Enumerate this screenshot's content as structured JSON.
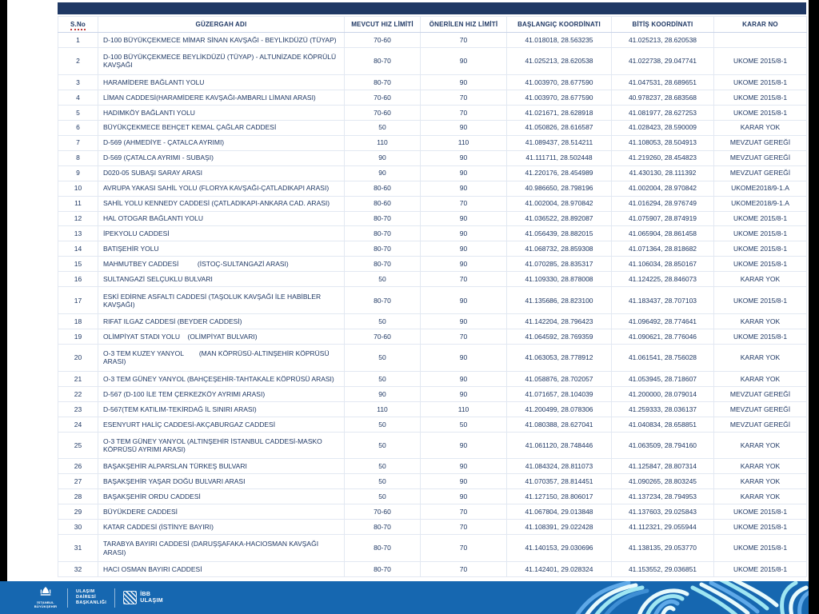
{
  "table": {
    "columns": [
      "S.No",
      "GÜZERGAH ADI",
      "MEVCUT HIZ LİMİTİ",
      "ÖNERİLEN HIZ LİMİTİ",
      "BAŞLANGIÇ KOORDİNATI",
      "BİTİŞ KOORDİNATI",
      "KARAR NO"
    ],
    "rows": [
      {
        "no": "1",
        "route": "D-100 BÜYÜKÇEKMECE MİMAR SİNAN KAVŞAĞI - BEYLİKDÜZÜ (TÜYAP)",
        "current": "70-60",
        "proposed": "70",
        "start": "41.018018, 28.563235",
        "end": "41.025213, 28.620538",
        "decision": ""
      },
      {
        "no": "2",
        "route": "D-100 BÜYÜKÇEKMECE BEYLİKDÜZÜ (TÜYAP) - ALTUNİZADE KÖPRÜLÜ KAVŞAĞI",
        "current": "80-70",
        "proposed": "90",
        "start": "41.025213, 28.620538",
        "end": "41.022738, 29.047741",
        "decision": "UKOME 2015/8-1"
      },
      {
        "no": "3",
        "route": "HARAMİDERE BAĞLANTI YOLU",
        "current": "80-70",
        "proposed": "90",
        "start": "41.003970, 28.677590",
        "end": "41.047531, 28.689651",
        "decision": "UKOME 2015/8-1"
      },
      {
        "no": "4",
        "route": "LİMAN CADDESİ(HARAMİDERE KAVŞAĞI-AMBARLI LİMANI ARASI)",
        "current": "70-60",
        "proposed": "70",
        "start": "41.003970, 28.677590",
        "end": "40.978237, 28.683568",
        "decision": "UKOME 2015/8-1"
      },
      {
        "no": "5",
        "route": "HADIMKÖY BAĞLANTI YOLU",
        "current": "70-60",
        "proposed": "70",
        "start": "41.021671, 28.628918",
        "end": "41.081977, 28.627253",
        "decision": "UKOME 2015/8-1"
      },
      {
        "no": "6",
        "route": "BÜYÜKÇEKMECE BEHÇET KEMAL ÇAĞLAR CADDESİ",
        "current": "50",
        "proposed": "90",
        "start": "41.050826, 28.616587",
        "end": "41.028423, 28.590009",
        "decision": "KARAR YOK"
      },
      {
        "no": "7",
        "route": "D-569 (AHMEDİYE - ÇATALCA AYRIMI)",
        "current": "110",
        "proposed": "110",
        "start": "41.089437, 28.514211",
        "end": "41.108053, 28.504913",
        "decision": "MEVZUAT GEREĞİ"
      },
      {
        "no": "8",
        "route": "D-569 (ÇATALCA AYRIMI - SUBAŞI)",
        "current": "90",
        "proposed": "90",
        "start": "41.111711, 28.502448",
        "end": "41.219260, 28.454823",
        "decision": "MEVZUAT GEREĞİ"
      },
      {
        "no": "9",
        "route": "D020-05 SUBAŞI SARAY ARASI",
        "current": "90",
        "proposed": "90",
        "start": "41.220176, 28.454989",
        "end": "41.430130, 28.111392",
        "decision": "MEVZUAT GEREĞİ"
      },
      {
        "no": "10",
        "route": "AVRUPA YAKASI SAHİL YOLU (FLORYA KAVŞAĞI-ÇATLADIKAPI ARASI)",
        "current": "80-60",
        "proposed": "90",
        "start": "40.986650, 28.798196",
        "end": "41.002004, 28.970842",
        "decision": "UKOME2018/9-1.A"
      },
      {
        "no": "11",
        "route": "SAHİL YOLU KENNEDY CADDESİ (ÇATLADIKAPI-ANKARA CAD. ARASI)",
        "current": "80-60",
        "proposed": "70",
        "start": "41.002004, 28.970842",
        "end": "41.016294, 28.976749",
        "decision": "UKOME2018/9-1.A"
      },
      {
        "no": "12",
        "route": "HAL OTOGAR BAĞLANTI YOLU",
        "current": "80-70",
        "proposed": "90",
        "start": "41.036522, 28.892087",
        "end": "41.075907, 28.874919",
        "decision": "UKOME 2015/8-1"
      },
      {
        "no": "13",
        "route": "İPEKYOLU CADDESİ",
        "current": "80-70",
        "proposed": "90",
        "start": "41.056439, 28.882015",
        "end": "41.065904, 28.861458",
        "decision": "UKOME 2015/8-1"
      },
      {
        "no": "14",
        "route": "BATIŞEHİR YOLU",
        "current": "80-70",
        "proposed": "90",
        "start": "41.068732, 28.859308",
        "end": "41.071364, 28.818682",
        "decision": "UKOME 2015/8-1"
      },
      {
        "no": "15",
        "route": "MAHMUTBEY CADDESİ          (İSTOÇ-SULTANGAZİ ARASI)",
        "current": "80-70",
        "proposed": "90",
        "start": "41.070285, 28.835317",
        "end": "41.106034, 28.850167",
        "decision": "UKOME 2015/8-1"
      },
      {
        "no": "16",
        "route": "SULTANGAZİ SELÇUKLU BULVARI",
        "current": "50",
        "proposed": "70",
        "start": "41.109330, 28.878008",
        "end": "41.124225, 28.846073",
        "decision": "KARAR YOK"
      },
      {
        "no": "17",
        "route": "ESKİ EDİRNE ASFALTI CADDESİ (TAŞOLUK KAVŞAĞI İLE HABİBLER KAVŞAĞI)",
        "current": "80-70",
        "proposed": "90",
        "start": "41.135686, 28.823100",
        "end": "41.183437, 28.707103",
        "decision": "UKOME 2015/8-1"
      },
      {
        "no": "18",
        "route": "RIFAT ILGAZ CADDESİ (BEYDER CADDESİ)",
        "current": "50",
        "proposed": "90",
        "start": "41.142204, 28.796423",
        "end": "41.096492, 28.774641",
        "decision": "KARAR YOK"
      },
      {
        "no": "19",
        "route": "OLİMPİYAT STADI YOLU    (OLİMPİYAT BULVARI)",
        "current": "70-60",
        "proposed": "70",
        "start": "41.064592, 28.769359",
        "end": "41.090621, 28.776046",
        "decision": "UKOME 2015/8-1"
      },
      {
        "no": "20",
        "route": "O-3 TEM KUZEY YANYOL        (MAN KÖPRÜSÜ-ALTINŞEHİR KÖPRÜSÜ ARASI)",
        "current": "50",
        "proposed": "90",
        "start": "41.063053, 28.778912",
        "end": "41.061541, 28.756028",
        "decision": "KARAR YOK"
      },
      {
        "no": "21",
        "route": "O-3 TEM GÜNEY YANYOL (BAHÇEŞEHİR-TAHTAKALE KÖPRÜSÜ ARASI)",
        "current": "50",
        "proposed": "90",
        "start": "41.058876, 28.702057",
        "end": "41.053945, 28.718607",
        "decision": "KARAR YOK"
      },
      {
        "no": "22",
        "route": "D-567 (D-100 İLE TEM ÇERKEZKÖY AYRIMI ARASI)",
        "current": "90",
        "proposed": "90",
        "start": "41.071657, 28.104039",
        "end": "41.200000, 28.079014",
        "decision": "MEVZUAT GEREĞİ"
      },
      {
        "no": "23",
        "route": "D-567(TEM KATILIM-TEKİRDAĞ İL SINIRI ARASI)",
        "current": "110",
        "proposed": "110",
        "start": "41.200499, 28.078306",
        "end": "41.259333, 28.036137",
        "decision": "MEVZUAT GEREĞİ"
      },
      {
        "no": "24",
        "route": "ESENYURT HALİÇ CADDESİ-AKÇABURGAZ CADDESİ",
        "current": "50",
        "proposed": "50",
        "start": "41.080388, 28.627041",
        "end": "41.040834, 28.658851",
        "decision": "MEVZUAT GEREĞİ"
      },
      {
        "no": "25",
        "route": "O-3 TEM GÜNEY YANYOL (ALTINŞEHİR İSTANBUL CADDESİ-MASKO KÖPRÜSÜ AYRIMI ARASI)",
        "current": "50",
        "proposed": "90",
        "start": "41.061120, 28.748446",
        "end": "41.063509, 28.794160",
        "decision": "KARAR YOK"
      },
      {
        "no": "26",
        "route": "BAŞAKŞEHİR ALPARSLAN TÜRKEŞ BULVARI",
        "current": "50",
        "proposed": "90",
        "start": "41.084324, 28.811073",
        "end": "41.125847, 28.807314",
        "decision": "KARAR YOK"
      },
      {
        "no": "27",
        "route": "BAŞAKŞEHİR YAŞAR DOĞU BULVARI ARASI",
        "current": "50",
        "proposed": "90",
        "start": "41.070357, 28.814451",
        "end": "41.090265, 28.803245",
        "decision": "KARAR YOK"
      },
      {
        "no": "28",
        "route": "BAŞAKŞEHİR ORDU CADDESİ",
        "current": "50",
        "proposed": "90",
        "start": "41.127150, 28.806017",
        "end": "41.137234, 28.794953",
        "decision": "KARAR YOK"
      },
      {
        "no": "29",
        "route": "BÜYÜKDERE CADDESİ",
        "current": "70-60",
        "proposed": "70",
        "start": "41.067804, 29.013848",
        "end": "41.137603, 29.025843",
        "decision": "UKOME 2015/8-1"
      },
      {
        "no": "30",
        "route": "KATAR CADDESİ (İSTİNYE BAYIRI)",
        "current": "80-70",
        "proposed": "70",
        "start": "41.108391, 29.022428",
        "end": "41.112321, 29.055944",
        "decision": "UKOME 2015/8-1"
      },
      {
        "no": "31",
        "route": "TARABYA BAYIRI CADDESİ (DARUŞŞAFAKA-HACIOSMAN KAVŞAĞI ARASI)",
        "current": "80-70",
        "proposed": "70",
        "start": "41.140153, 29.030696",
        "end": "41.138135, 29.053770",
        "decision": "UKOME 2015/8-1"
      },
      {
        "no": "32",
        "route": "HACI OSMAN BAYIRI CADDESİ",
        "current": "80-70",
        "proposed": "70",
        "start": "41.142401, 29.028324",
        "end": "41.153552, 29.036851",
        "decision": "UKOME 2015/8-1"
      }
    ]
  },
  "footer": {
    "emblem_caption": "İSTANBUL BÜYÜKŞEHİR",
    "department": [
      "ULAŞIM",
      "DAİRESİ",
      "BAŞKANLIĞI"
    ],
    "brand_top": "İBB",
    "brand_bottom": "ULAŞIM"
  },
  "colors": {
    "topbar": "#1F3864",
    "table_text": "#1F3864",
    "grid_line": "#E2E8F2",
    "footer_band": "#1667B0",
    "pattern_light": "#E8FAFC",
    "pattern_cyan": "#9FE6F2",
    "pattern_blue": "#5FA9E8"
  }
}
